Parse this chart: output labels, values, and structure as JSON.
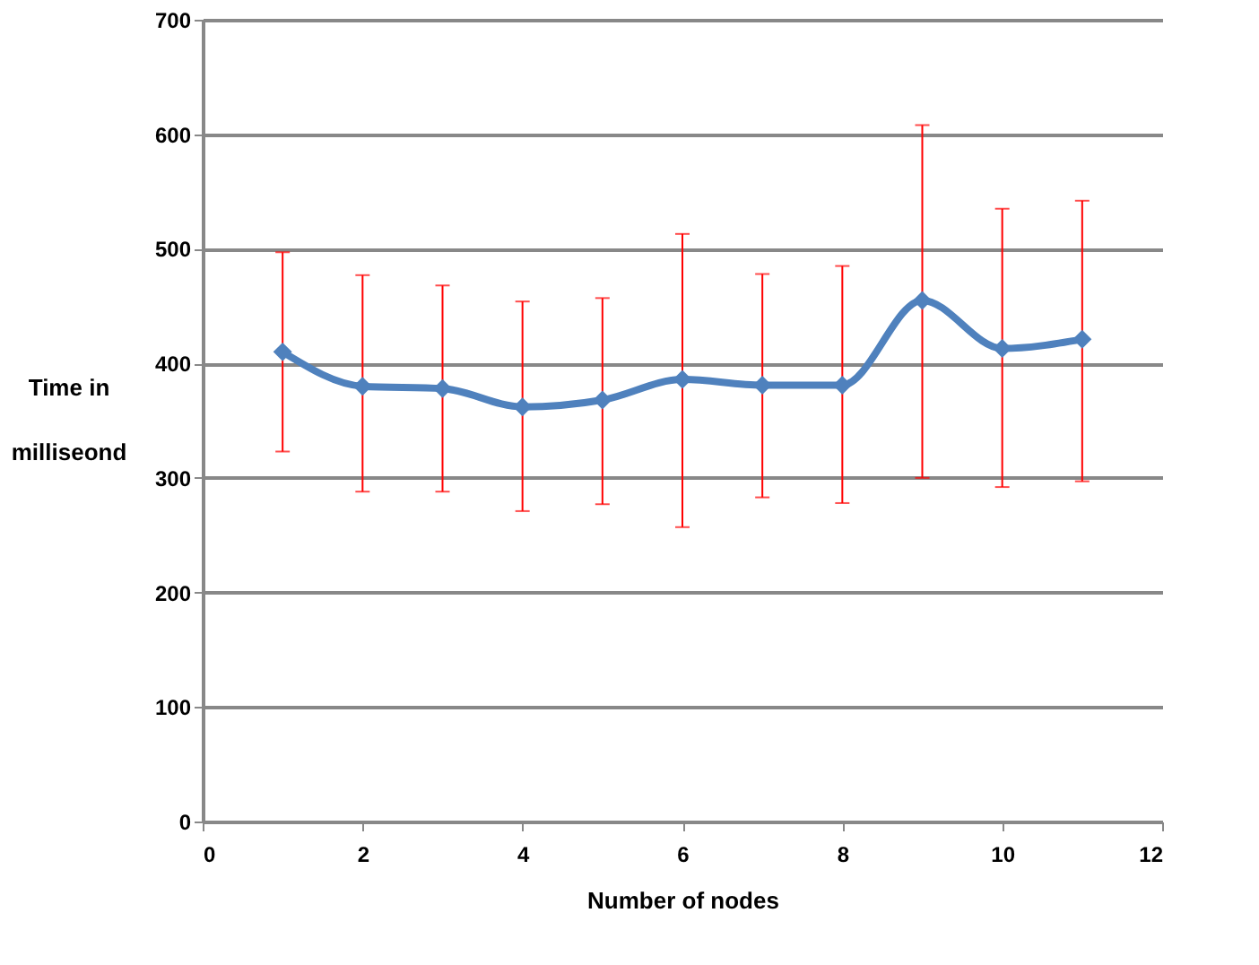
{
  "chart_data": {
    "type": "line",
    "xlabel": "Number of nodes",
    "ylabel": "Time in\nmilliseond",
    "x": [
      1,
      2,
      3,
      4,
      5,
      6,
      7,
      8,
      9,
      10,
      11
    ],
    "series": [
      {
        "color": "#4f81bd",
        "values": [
          410,
          380,
          378,
          362,
          368,
          386,
          381,
          381,
          455,
          413,
          421
        ],
        "errors": [
          [
            323,
            497
          ],
          [
            288,
            477
          ],
          [
            288,
            468
          ],
          [
            271,
            454
          ],
          [
            277,
            457
          ],
          [
            257,
            513
          ],
          [
            283,
            478
          ],
          [
            278,
            485
          ],
          [
            300,
            608
          ],
          [
            292,
            535
          ],
          [
            297,
            542
          ]
        ]
      }
    ],
    "xlim": [
      0,
      12
    ],
    "xticks": [
      0,
      2,
      4,
      6,
      8,
      10,
      12
    ],
    "ylim": [
      0,
      700
    ],
    "yticks": [
      0,
      100,
      200,
      300,
      400,
      500,
      600,
      700
    ],
    "grid": "y",
    "marker": "diamond",
    "line_style": "solid"
  }
}
